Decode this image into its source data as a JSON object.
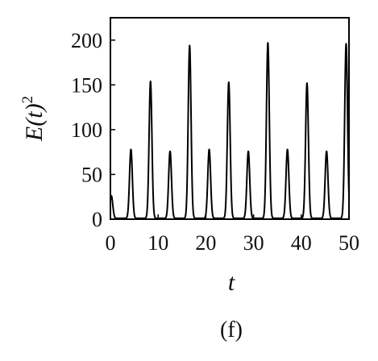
{
  "chart_data": {
    "type": "line",
    "title": "",
    "panel_label": "(f)",
    "xlabel": "t",
    "ylabel": {
      "base": "E(t)",
      "superscript": "2"
    },
    "xlim": [
      0,
      50
    ],
    "ylim": [
      0,
      225
    ],
    "x_ticks": [
      0,
      10,
      20,
      30,
      40,
      50
    ],
    "y_ticks": [
      0,
      50,
      100,
      150,
      200
    ],
    "x_tick_labels": [
      "0",
      "10",
      "20",
      "30",
      "40",
      "50"
    ],
    "y_tick_labels": [
      "0",
      "50",
      "100",
      "150",
      "200"
    ],
    "grid": false,
    "legend": "none",
    "line_color": "#000000",
    "series": [
      {
        "peaks": [
          {
            "t": 0.2,
            "value": 25
          },
          {
            "t": 4.3,
            "value": 77
          },
          {
            "t": 8.4,
            "value": 153
          },
          {
            "t": 12.5,
            "value": 75
          },
          {
            "t": 16.6,
            "value": 193
          },
          {
            "t": 20.7,
            "value": 77
          },
          {
            "t": 24.8,
            "value": 152
          },
          {
            "t": 28.9,
            "value": 75
          },
          {
            "t": 33.0,
            "value": 196
          },
          {
            "t": 37.1,
            "value": 77
          },
          {
            "t": 41.2,
            "value": 151
          },
          {
            "t": 45.3,
            "value": 75
          },
          {
            "t": 49.4,
            "value": 195
          }
        ],
        "baseline": 1,
        "end_value": 65
      }
    ]
  }
}
